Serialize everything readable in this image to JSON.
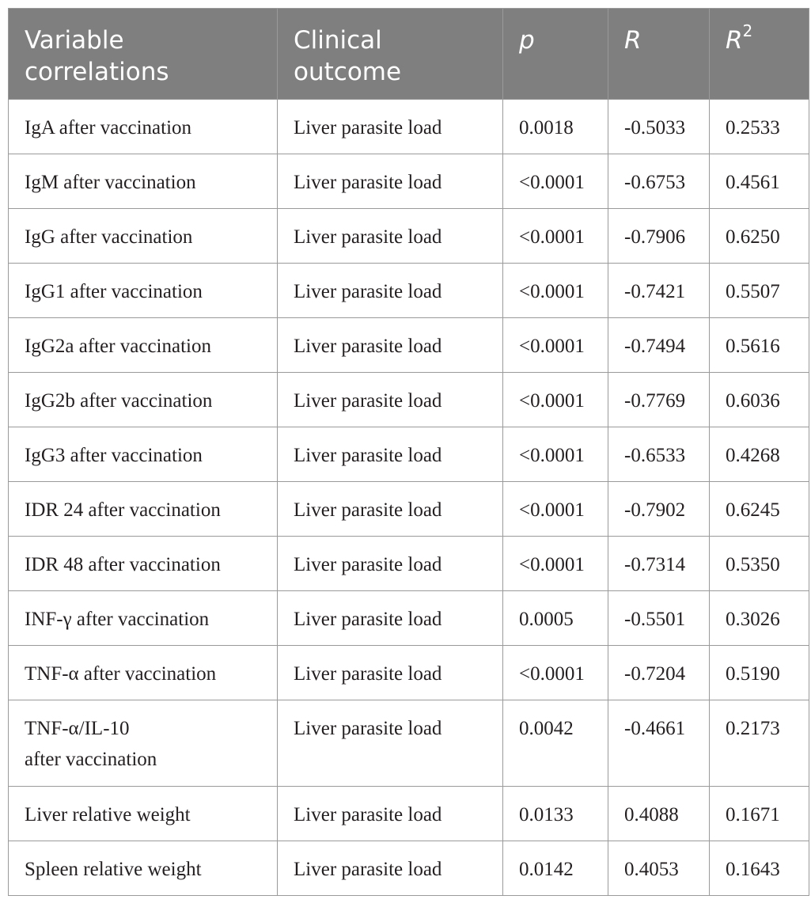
{
  "table": {
    "headers": [
      {
        "label": "Variable\ncorrelations",
        "sup": ""
      },
      {
        "label": "Clinical\noutcome",
        "sup": ""
      },
      {
        "label": "p",
        "sup": ""
      },
      {
        "label": "R",
        "sup": ""
      },
      {
        "label": "R",
        "sup": "2"
      }
    ],
    "rows": [
      {
        "variable": "IgA after vaccination",
        "outcome": "Liver parasite load",
        "p": "0.0018",
        "r": "-0.5033",
        "r2": "0.2533"
      },
      {
        "variable": "IgM after vaccination",
        "outcome": "Liver parasite load",
        "p": "<0.0001",
        "r": "-0.6753",
        "r2": "0.4561"
      },
      {
        "variable": "IgG after vaccination",
        "outcome": "Liver parasite load",
        "p": "<0.0001",
        "r": "-0.7906",
        "r2": "0.6250"
      },
      {
        "variable": "IgG1 after vaccination",
        "outcome": "Liver parasite load",
        "p": "<0.0001",
        "r": "-0.7421",
        "r2": "0.5507"
      },
      {
        "variable": "IgG2a after vaccination",
        "outcome": "Liver parasite load",
        "p": "<0.0001",
        "r": "-0.7494",
        "r2": "0.5616"
      },
      {
        "variable": "IgG2b after vaccination",
        "outcome": "Liver parasite load",
        "p": "<0.0001",
        "r": "-0.7769",
        "r2": "0.6036"
      },
      {
        "variable": "IgG3 after vaccination",
        "outcome": "Liver parasite load",
        "p": "<0.0001",
        "r": "-0.6533",
        "r2": "0.4268"
      },
      {
        "variable": "IDR 24 after vaccination",
        "outcome": "Liver parasite load",
        "p": "<0.0001",
        "r": "-0.7902",
        "r2": "0.6245"
      },
      {
        "variable": "IDR 48 after vaccination",
        "outcome": "Liver parasite load",
        "p": "<0.0001",
        "r": "-0.7314",
        "r2": "0.5350"
      },
      {
        "variable": "INF-γ after vaccination",
        "outcome": "Liver parasite load",
        "p": "0.0005",
        "r": "-0.5501",
        "r2": "0.3026"
      },
      {
        "variable": "TNF-α after vaccination",
        "outcome": "Liver parasite load",
        "p": "<0.0001",
        "r": "-0.7204",
        "r2": "0.5190"
      },
      {
        "variable": "TNF-α/IL-10\nafter vaccination",
        "outcome": "Liver parasite load",
        "p": "0.0042",
        "r": "-0.4661",
        "r2": "0.2173"
      },
      {
        "variable": "Liver relative weight",
        "outcome": "Liver parasite load",
        "p": "0.0133",
        "r": "0.4088",
        "r2": "0.1671"
      },
      {
        "variable": "Spleen relative weight",
        "outcome": "Liver parasite load",
        "p": "0.0142",
        "r": "0.4053",
        "r2": "0.1643"
      }
    ]
  }
}
